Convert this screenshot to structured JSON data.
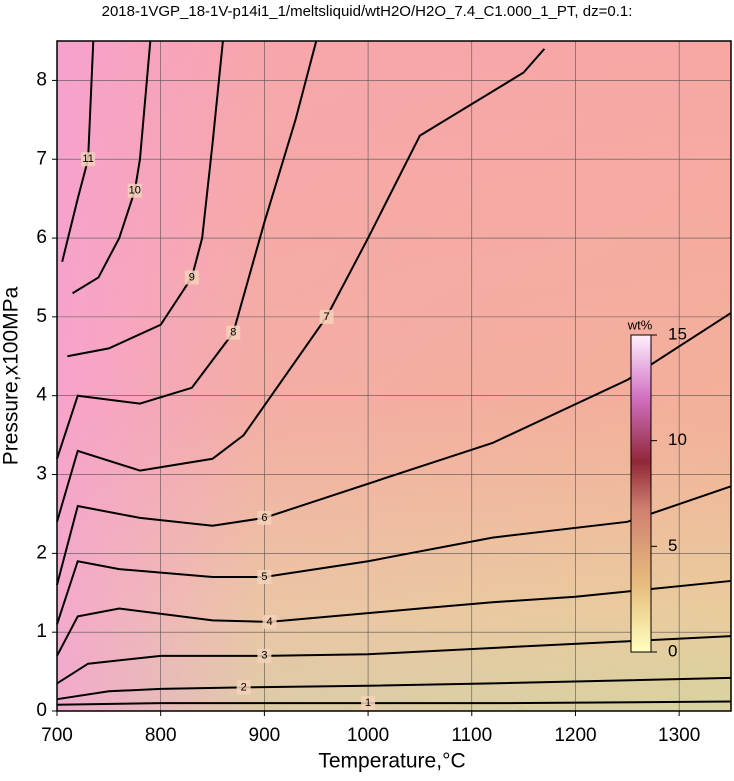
{
  "chart_data": {
    "type": "contour",
    "title": "2018-1VGP_18-1V-p14i1_1/meltsliquid/wtH2O/H2O_7.4_C1.000_1_PT, dz=0.1:",
    "x_label": "Temperature,°C",
    "y_label": "Pressure,x100MPa",
    "xlim": [
      700,
      1350
    ],
    "ylim": [
      0,
      8.5
    ],
    "xticks": [
      700,
      800,
      900,
      1000,
      1100,
      1200,
      1300
    ],
    "yticks": [
      0,
      1,
      2,
      3,
      4,
      5,
      6,
      7,
      8
    ],
    "grid": true,
    "colorbar": {
      "label": "wt%",
      "lim": [
        0,
        15
      ],
      "ticks": [
        0,
        5,
        10,
        15
      ]
    },
    "contours": [
      {
        "level": 1,
        "x": [
          700,
          800,
          905,
          1000,
          1130,
          1350
        ],
        "y": [
          0.08,
          0.1,
          0.1,
          0.1,
          0.1,
          0.12
        ]
      },
      {
        "level": 2,
        "x": [
          700,
          750,
          800,
          880,
          1000,
          1120,
          1350
        ],
        "y": [
          0.15,
          0.25,
          0.28,
          0.3,
          0.32,
          0.35,
          0.42
        ]
      },
      {
        "level": 3,
        "x": [
          700,
          730,
          800,
          900,
          1000,
          1120,
          1350
        ],
        "y": [
          0.35,
          0.6,
          0.7,
          0.7,
          0.72,
          0.8,
          0.95
        ]
      },
      {
        "level": 4,
        "x": [
          700,
          720,
          760,
          850,
          905,
          1050,
          1120,
          1200,
          1350
        ],
        "y": [
          0.7,
          1.2,
          1.3,
          1.15,
          1.13,
          1.3,
          1.38,
          1.45,
          1.65
        ]
      },
      {
        "level": 5,
        "x": [
          700,
          720,
          760,
          850,
          900,
          1000,
          1120,
          1250,
          1350
        ],
        "y": [
          1.1,
          1.9,
          1.8,
          1.7,
          1.7,
          1.9,
          2.2,
          2.4,
          2.85
        ]
      },
      {
        "level": 6,
        "x": [
          700,
          720,
          780,
          850,
          900,
          1050,
          1120,
          1250,
          1350
        ],
        "y": [
          1.6,
          2.6,
          2.45,
          2.35,
          2.45,
          3.1,
          3.4,
          4.2,
          5.05
        ]
      },
      {
        "level": 7,
        "x": [
          700,
          720,
          780,
          850,
          880,
          960,
          1000,
          1050,
          1150,
          1170
        ],
        "y": [
          2.4,
          3.3,
          3.05,
          3.2,
          3.5,
          5.0,
          6.0,
          7.3,
          8.1,
          8.4
        ]
      },
      {
        "level": 8,
        "x": [
          700,
          720,
          780,
          830,
          870,
          900,
          930,
          950
        ],
        "y": [
          3.2,
          4.0,
          3.9,
          4.1,
          4.8,
          6.2,
          7.5,
          8.5
        ]
      },
      {
        "level": 9,
        "x": [
          710,
          750,
          800,
          830,
          840,
          850,
          860
        ],
        "y": [
          4.5,
          4.6,
          4.9,
          5.5,
          6.0,
          7.2,
          8.5
        ]
      },
      {
        "level": 10,
        "x": [
          715,
          740,
          760,
          775,
          780,
          790
        ],
        "y": [
          5.3,
          5.5,
          6.0,
          6.6,
          7.0,
          8.5
        ]
      },
      {
        "level": 11,
        "x": [
          705,
          720,
          730,
          735
        ],
        "y": [
          5.7,
          6.5,
          7.0,
          8.5
        ]
      }
    ]
  }
}
